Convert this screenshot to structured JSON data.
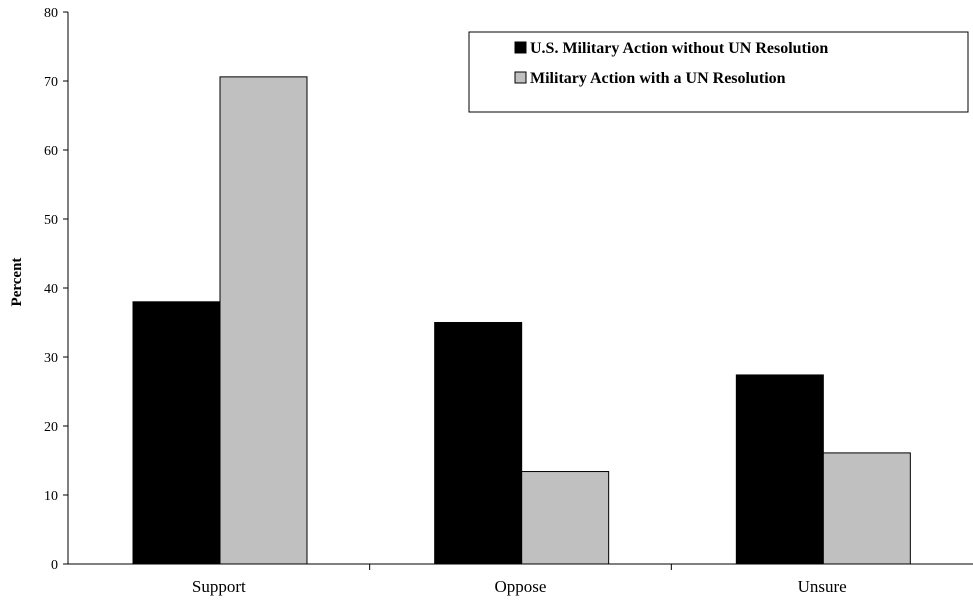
{
  "chart_data": {
    "type": "bar",
    "categories": [
      "Support",
      "Oppose",
      "Unsure"
    ],
    "series": [
      {
        "name": "U.S. Military Action without UN Resolution",
        "values": [
          38,
          35,
          27.4
        ],
        "color": "#000000"
      },
      {
        "name": "Military Action with a UN Resolution",
        "values": [
          70.6,
          13.4,
          16.1
        ],
        "color": "#c0c0c0"
      }
    ],
    "title": "",
    "xlabel": "",
    "ylabel": "Percent",
    "ylim": [
      0,
      80
    ],
    "yticks": [
      0,
      10,
      20,
      30,
      40,
      50,
      60,
      70,
      80
    ],
    "grid": false,
    "legend_position": "top-right"
  }
}
